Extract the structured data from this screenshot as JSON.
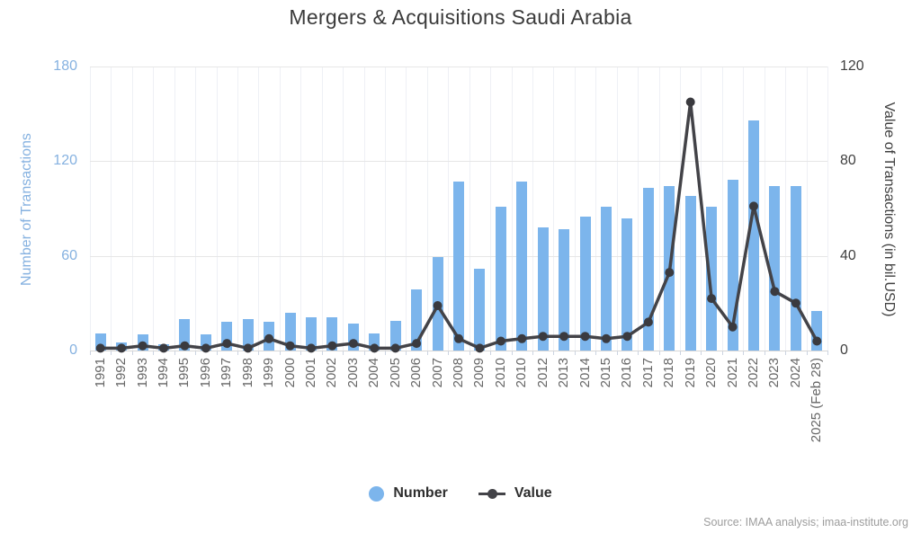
{
  "chart_data": {
    "type": "combo-bar-line",
    "title": "Mergers & Acquisitions Saudi Arabia",
    "categories": [
      "1991",
      "1992",
      "1993",
      "1994",
      "1995",
      "1996",
      "1997",
      "1998",
      "1999",
      "2000",
      "2001",
      "2002",
      "2003",
      "2004",
      "2005",
      "2006",
      "2007",
      "2008",
      "2009",
      "2010",
      "2010",
      "2012",
      "2013",
      "2014",
      "2015",
      "2016",
      "2017",
      "2018",
      "2019",
      "2020",
      "2021",
      "2022",
      "2023",
      "2024",
      "2025 (Feb 28)"
    ],
    "series": [
      {
        "name": "Number",
        "type": "bar",
        "axis": "left",
        "color": "#7cb5ec",
        "values": [
          11,
          5,
          10,
          4,
          20,
          10,
          18,
          20,
          18,
          24,
          21,
          21,
          17,
          11,
          19,
          39,
          59,
          107,
          52,
          91,
          107,
          78,
          77,
          85,
          91,
          84,
          103,
          104,
          98,
          91,
          108,
          146,
          104,
          104,
          25
        ]
      },
      {
        "name": "Value",
        "type": "line",
        "axis": "right",
        "color": "#434348",
        "marker_color": "#3a3a3f",
        "values": [
          1,
          1,
          2,
          1,
          2,
          1,
          3,
          1,
          5,
          2,
          1,
          2,
          3,
          1,
          1,
          3,
          19,
          5,
          1,
          4,
          5,
          6,
          6,
          6,
          5,
          6,
          12,
          33,
          105,
          22,
          10,
          61,
          25,
          20,
          4
        ]
      }
    ],
    "axes": {
      "left": {
        "title": "Number of Transactions",
        "ticks": [
          0,
          60,
          120,
          180
        ],
        "max": 180,
        "text_color": "#85b1e0"
      },
      "right": {
        "title": "Value of Transactions (in bil.USD)",
        "ticks": [
          0,
          40,
          80,
          120
        ],
        "max": 120,
        "text_color": "#404040"
      }
    },
    "grid": {
      "horizontal": true,
      "vertical": true
    },
    "legend_position": "bottom"
  },
  "source_note": "Source: IMAA analysis; imaa-institute.org"
}
